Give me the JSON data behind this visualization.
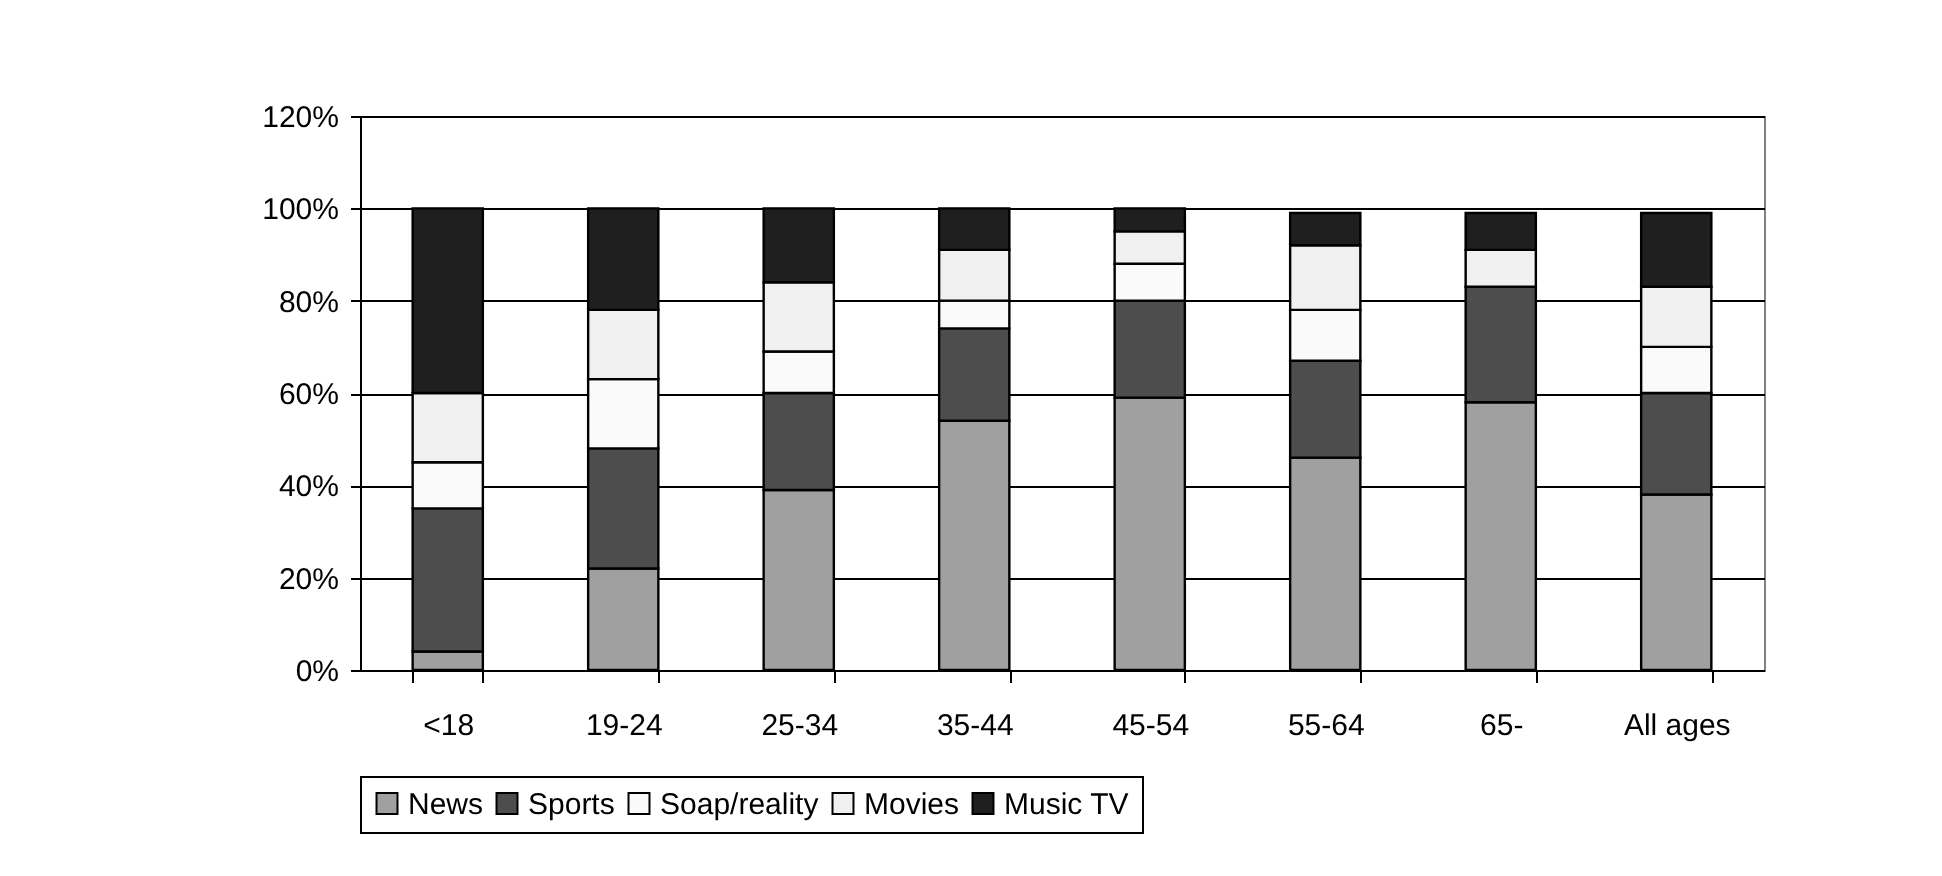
{
  "chart_data": {
    "type": "bar",
    "stacked": true,
    "categories": [
      "<18",
      "19-24",
      "25-34",
      "35-44",
      "45-54",
      "55-64",
      "65-",
      "All ages"
    ],
    "series": [
      {
        "name": "News",
        "color": "#a0a0a0",
        "values": [
          4,
          22,
          39,
          54,
          59,
          46,
          58,
          38
        ]
      },
      {
        "name": "Sports",
        "color": "#4d4d4d",
        "values": [
          31,
          26,
          21,
          20,
          21,
          21,
          25,
          22
        ]
      },
      {
        "name": "Soap/reality",
        "color": "#fafafa",
        "values": [
          10,
          15,
          9,
          6,
          8,
          11,
          0,
          10
        ]
      },
      {
        "name": "Movies",
        "color": "#f0f0f0",
        "values": [
          15,
          15,
          15,
          11,
          7,
          14,
          8,
          13
        ]
      },
      {
        "name": "Music TV",
        "color": "#1f1f1f",
        "values": [
          40,
          22,
          16,
          9,
          5,
          7,
          8,
          16
        ]
      }
    ],
    "ylim": [
      0,
      120
    ],
    "yticks": [
      {
        "value": 0,
        "label": "0%"
      },
      {
        "value": 20,
        "label": "20%"
      },
      {
        "value": 40,
        "label": "40%"
      },
      {
        "value": 60,
        "label": "60%"
      },
      {
        "value": 80,
        "label": "80%"
      },
      {
        "value": 100,
        "label": "100%"
      },
      {
        "value": 120,
        "label": "120%"
      }
    ],
    "grid": "y",
    "legend": "bottom"
  }
}
